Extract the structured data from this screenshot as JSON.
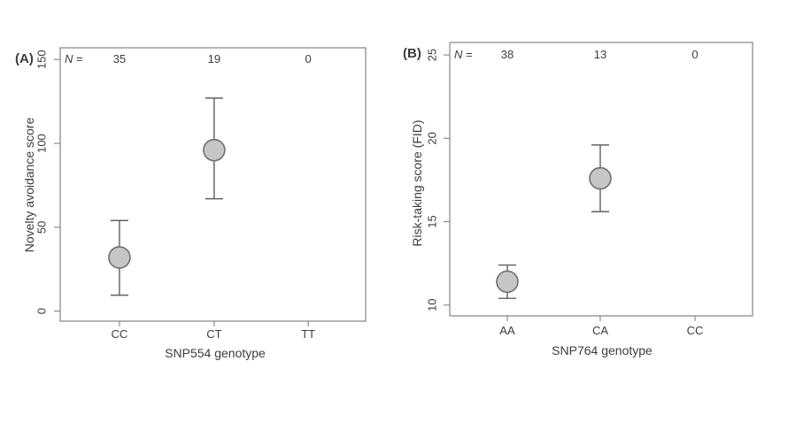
{
  "figure": {
    "background": "#ffffff",
    "frame_color": "#8c8c8c",
    "text_color": "#3c3c3c",
    "errorbar_color": "#606060",
    "marker_fill": "#c6c6c6",
    "marker_stroke": "#6f6f6f"
  },
  "chart_data": [
    {
      "type": "scatter",
      "panel_label": "(A)",
      "xlabel": "SNP554 genotype",
      "ylabel": "Novelty avoidance score",
      "n_prefix_italic": "N",
      "n_prefix_rest": " =",
      "categories": [
        "CC",
        "CT",
        "TT"
      ],
      "n_values": [
        "35",
        "19",
        "0"
      ],
      "series": [
        {
          "name": "mean_with_ci",
          "means": [
            32,
            96,
            null
          ],
          "ci_low": [
            9.5,
            67,
            null
          ],
          "ci_high": [
            54,
            127,
            null
          ]
        }
      ],
      "yticks": [
        0,
        50,
        100,
        150
      ],
      "ytick_labels": [
        "0",
        "50",
        "100",
        "150"
      ],
      "ylim": [
        -6,
        157
      ],
      "grid": false,
      "legend": "none"
    },
    {
      "type": "scatter",
      "panel_label": "(B)",
      "xlabel": "SNP764 genotype",
      "ylabel": "Risk-taking score (FID)",
      "n_prefix_italic": "N",
      "n_prefix_rest": " =",
      "categories": [
        "AA",
        "CA",
        "CC"
      ],
      "n_values": [
        "38",
        "13",
        "0"
      ],
      "series": [
        {
          "name": "mean_with_ci",
          "means": [
            11.4,
            17.6,
            null
          ],
          "ci_low": [
            10.4,
            15.6,
            null
          ],
          "ci_high": [
            12.4,
            19.6,
            null
          ]
        }
      ],
      "yticks": [
        10,
        15,
        20,
        25
      ],
      "ytick_labels": [
        "10",
        "15",
        "20",
        "25"
      ],
      "ylim": [
        9.35,
        25.75
      ],
      "grid": false,
      "legend": "none"
    }
  ]
}
